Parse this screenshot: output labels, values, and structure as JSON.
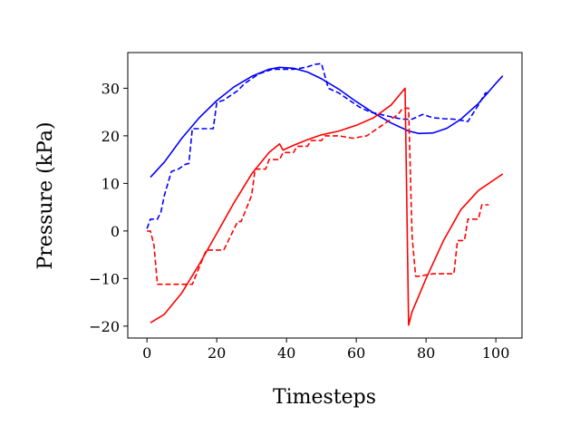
{
  "chart_data": {
    "type": "line",
    "title": "",
    "xlabel": "Timesteps",
    "ylabel": "Pressure (kPa)",
    "xlim": [
      -5.5,
      107.5
    ],
    "ylim": [
      -22.5,
      37.5
    ],
    "xticks": [
      0,
      20,
      40,
      60,
      80,
      100
    ],
    "yticks": [
      -20,
      -10,
      0,
      10,
      20,
      30
    ],
    "xtick_labels": [
      "0",
      "20",
      "40",
      "60",
      "80",
      "100"
    ],
    "ytick_labels": [
      "−20",
      "−10",
      "0",
      "10",
      "20",
      "30"
    ],
    "grid": false,
    "legend": "none",
    "series": [
      {
        "color": "#0000ff",
        "style": "solid",
        "x": [
          1,
          5,
          10,
          15,
          20,
          25,
          30,
          35,
          38,
          42,
          46,
          50,
          55,
          60,
          65,
          70,
          75,
          78,
          82,
          86,
          90,
          95,
          100,
          102
        ],
        "y": [
          11.3,
          14.5,
          19.5,
          23.8,
          27.4,
          30.3,
          32.5,
          34.0,
          34.4,
          34.2,
          33.4,
          32.0,
          29.8,
          27.2,
          24.8,
          22.7,
          21.0,
          20.5,
          20.6,
          21.6,
          23.5,
          26.8,
          31.0,
          32.6
        ]
      },
      {
        "color": "#0000ff",
        "style": "dashed-step",
        "x": [
          0,
          1,
          3,
          4,
          5,
          7,
          9,
          11,
          12,
          13,
          19,
          20,
          22,
          24,
          26,
          28,
          30,
          32,
          34,
          36,
          38,
          40,
          42,
          44,
          46,
          48,
          50,
          52,
          55,
          58,
          61,
          64,
          67,
          70,
          73,
          76,
          79,
          82,
          85,
          88,
          92,
          95,
          97,
          98
        ],
        "y": [
          0.5,
          2.5,
          2.5,
          4.0,
          7.5,
          12.5,
          13.0,
          14.0,
          14.2,
          21.5,
          21.5,
          27.0,
          27.5,
          28.5,
          29.5,
          31.0,
          32.0,
          33.0,
          33.5,
          34.0,
          34.0,
          34.0,
          34.0,
          34.2,
          34.5,
          35.0,
          35.2,
          30.0,
          29.0,
          27.5,
          26.0,
          25.0,
          24.5,
          24.0,
          23.5,
          23.5,
          24.5,
          23.8,
          23.6,
          23.5,
          23.0,
          26.5,
          29.0,
          29.0
        ]
      },
      {
        "color": "#ff0000",
        "style": "solid",
        "x": [
          1,
          5,
          10,
          15,
          20,
          25,
          30,
          35,
          38,
          39,
          42,
          46,
          50,
          55,
          60,
          65,
          70,
          74,
          75,
          76,
          80,
          85,
          90,
          95,
          100,
          102
        ],
        "y": [
          -19.3,
          -17.5,
          -13.0,
          -7.0,
          -0.5,
          6.0,
          12.0,
          16.5,
          18.3,
          17.0,
          18.0,
          19.2,
          20.2,
          21.0,
          22.2,
          23.8,
          26.5,
          30.0,
          -19.8,
          -17.0,
          -10.0,
          -2.0,
          4.5,
          8.5,
          11.0,
          12.0
        ]
      },
      {
        "color": "#ff0000",
        "style": "dashed-step",
        "x": [
          0,
          1,
          2,
          3,
          9,
          13,
          17,
          21,
          22,
          26,
          27,
          30,
          31,
          34,
          35,
          38,
          39,
          42,
          43,
          46,
          47,
          50,
          51,
          55,
          59,
          63,
          66,
          69,
          72,
          73,
          74,
          75,
          76,
          77,
          78,
          82,
          86,
          88,
          89,
          90,
          91,
          92,
          95,
          96,
          98
        ],
        "y": [
          0.0,
          0.0,
          -3.0,
          -11.2,
          -11.2,
          -11.2,
          -4.0,
          -4.0,
          -4.0,
          2.0,
          2.0,
          7.5,
          13.0,
          13.0,
          15.0,
          15.0,
          16.5,
          16.5,
          17.8,
          17.8,
          19.0,
          19.0,
          20.0,
          20.0,
          19.5,
          20.0,
          21.5,
          23.0,
          24.5,
          25.5,
          25.8,
          25.8,
          -1.0,
          -9.5,
          -9.5,
          -9.0,
          -9.0,
          -9.0,
          -2.0,
          -2.0,
          -2.0,
          2.5,
          2.5,
          5.5,
          5.5
        ]
      }
    ]
  }
}
